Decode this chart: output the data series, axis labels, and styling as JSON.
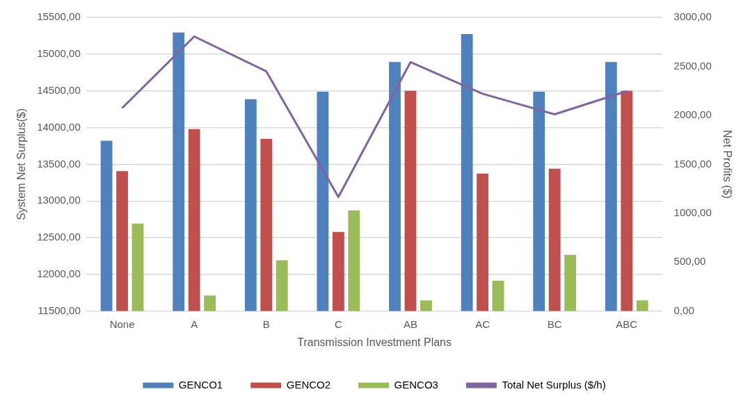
{
  "chart_data": {
    "type": "bar",
    "xlabel": "Transmission Investment Plans",
    "ylabel": "System Net Surplus($)",
    "y2label": "Net Profits ($)",
    "categories": [
      "None",
      "A",
      "B",
      "C",
      "AB",
      "AC",
      "BC",
      "ABC"
    ],
    "series": [
      {
        "name": "GENCO1",
        "color": "#4f81bd",
        "axis": "y2",
        "values": [
          1740,
          2845,
          2165,
          2240,
          2545,
          2830,
          2240,
          2545
        ]
      },
      {
        "name": "GENCO2",
        "color": "#c0504d",
        "axis": "y2",
        "values": [
          1430,
          1860,
          1760,
          810,
          2250,
          1405,
          1455,
          2250
        ]
      },
      {
        "name": "GENCO3",
        "color": "#9bbb59",
        "axis": "y2",
        "values": [
          895,
          160,
          520,
          1030,
          110,
          310,
          575,
          110
        ]
      },
      {
        "name": "Total Net Surplus ($/h)",
        "type": "line",
        "color": "#8064a2",
        "values": [
          14265,
          15240,
          14765,
          13055,
          14890,
          14460,
          14180,
          14495
        ]
      }
    ],
    "ylim": [
      11500,
      15500
    ],
    "yticks": [
      {
        "value": 11500,
        "label": "11500,00"
      },
      {
        "value": 12000,
        "label": "12000,00"
      },
      {
        "value": 12500,
        "label": "12500,00"
      },
      {
        "value": 13000,
        "label": "13000,00"
      },
      {
        "value": 13500,
        "label": "13500,00"
      },
      {
        "value": 14000,
        "label": "14000,00"
      },
      {
        "value": 14500,
        "label": "14500,00"
      },
      {
        "value": 15000,
        "label": "15000,00"
      },
      {
        "value": 15500,
        "label": "15500,00"
      }
    ],
    "y2lim": [
      0,
      3000
    ],
    "y2ticks": [
      {
        "value": 0,
        "label": "0,00"
      },
      {
        "value": 500,
        "label": "500,00"
      },
      {
        "value": 1000,
        "label": "1000,00"
      },
      {
        "value": 1500,
        "label": "1500,00"
      },
      {
        "value": 2000,
        "label": "2000,00"
      },
      {
        "value": 2500,
        "label": "2500,00"
      },
      {
        "value": 3000,
        "label": "3000,00"
      }
    ],
    "grid": "y",
    "legend": "bottom",
    "marker": "none"
  }
}
